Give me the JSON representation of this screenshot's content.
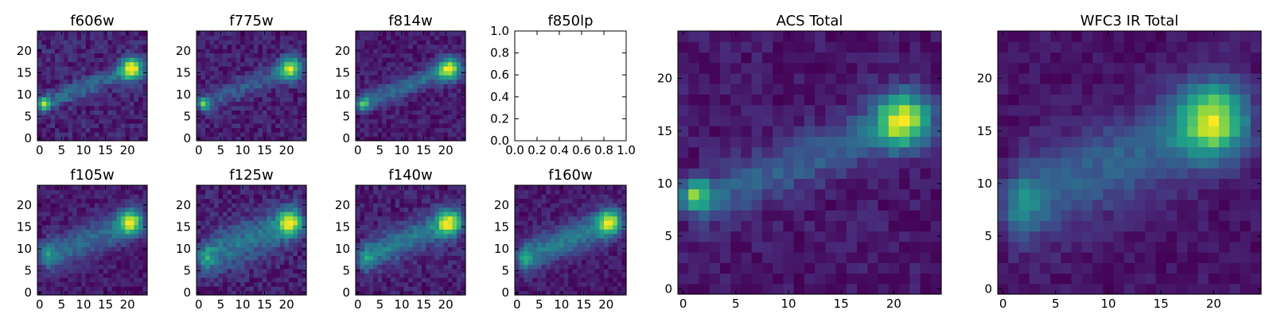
{
  "chart_data": [
    {
      "type": "heatmap",
      "title": "f606w",
      "grid": [
        25,
        25
      ],
      "xlim": [
        0,
        24
      ],
      "ylim": [
        0,
        24
      ],
      "xticks": [
        0,
        5,
        10,
        15,
        20
      ],
      "yticks": [
        0,
        5,
        10,
        15,
        20
      ],
      "features": {
        "base": 0.22,
        "knot": [
          21,
          16,
          1.0,
          1.8
        ],
        "clump": [
          1,
          8,
          0.85,
          1.0
        ],
        "arc": 0.3,
        "arcWidth": 1.6,
        "noise": 0.12,
        "seed": 11
      }
    },
    {
      "type": "heatmap",
      "title": "f775w",
      "grid": [
        25,
        25
      ],
      "xlim": [
        0,
        24
      ],
      "ylim": [
        0,
        24
      ],
      "xticks": [
        0,
        5,
        10,
        15,
        20
      ],
      "yticks": [
        0,
        5,
        10,
        15,
        20
      ],
      "features": {
        "base": 0.3,
        "knot": [
          21,
          16,
          1.0,
          1.8
        ],
        "clump": [
          1,
          8,
          0.8,
          1.0
        ],
        "arc": 0.28,
        "arcWidth": 1.8,
        "noise": 0.12,
        "seed": 23
      }
    },
    {
      "type": "heatmap",
      "title": "f814w",
      "grid": [
        25,
        25
      ],
      "xlim": [
        0,
        24
      ],
      "ylim": [
        0,
        24
      ],
      "xticks": [
        0,
        5,
        10,
        15,
        20
      ],
      "yticks": [
        0,
        5,
        10,
        15,
        20
      ],
      "features": {
        "base": 0.2,
        "knot": [
          21,
          16,
          1.0,
          1.9
        ],
        "clump": [
          1,
          8,
          0.8,
          1.0
        ],
        "arc": 0.42,
        "arcWidth": 1.5,
        "noise": 0.11,
        "seed": 37
      }
    },
    {
      "type": "empty",
      "title": "f850lp",
      "xlim": [
        0.0,
        1.0
      ],
      "ylim": [
        0.0,
        1.0
      ],
      "xticks": [
        "0.0",
        "0.2",
        "0.4",
        "0.6",
        "0.8",
        "1.0"
      ],
      "yticks": [
        "0.0",
        "0.2",
        "0.4",
        "0.6",
        "0.8",
        "1.0"
      ]
    },
    {
      "type": "heatmap",
      "title": "ACS Total",
      "grid": [
        25,
        25
      ],
      "xlim": [
        0,
        24
      ],
      "ylim": [
        0,
        24
      ],
      "xticks": [
        0,
        5,
        10,
        15,
        20
      ],
      "yticks": [
        0,
        5,
        10,
        15,
        20
      ],
      "features": {
        "base": 0.25,
        "knot": [
          21,
          16,
          1.0,
          1.9
        ],
        "clump": [
          1,
          9,
          0.9,
          1.0
        ],
        "arc": 0.32,
        "arcWidth": 1.8,
        "noise": 0.09,
        "seed": 53
      }
    },
    {
      "type": "heatmap",
      "title": "WFC3 IR Total",
      "grid": [
        25,
        25
      ],
      "xlim": [
        0,
        24
      ],
      "ylim": [
        0,
        24
      ],
      "xticks": [
        0,
        5,
        10,
        15,
        20
      ],
      "yticks": [
        0,
        5,
        10,
        15,
        20
      ],
      "features": {
        "base": 0.35,
        "knot": [
          20,
          16,
          1.0,
          2.4
        ],
        "clump": [
          1,
          8,
          0.35,
          2.0
        ],
        "arc": 0.4,
        "arcWidth": 3.0,
        "noise": 0.08,
        "seed": 71
      }
    },
    {
      "type": "heatmap",
      "title": "f105w",
      "grid": [
        25,
        25
      ],
      "xlim": [
        0,
        24
      ],
      "ylim": [
        0,
        24
      ],
      "xticks": [
        0,
        5,
        10,
        15,
        20
      ],
      "yticks": [
        0,
        5,
        10,
        15,
        20
      ],
      "features": {
        "base": 0.32,
        "knot": [
          21,
          16,
          0.95,
          2.0
        ],
        "clump": [
          1,
          9,
          0.35,
          1.8
        ],
        "arc": 0.38,
        "arcWidth": 2.8,
        "noise": 0.1,
        "seed": 83
      }
    },
    {
      "type": "heatmap",
      "title": "f125w",
      "grid": [
        25,
        25
      ],
      "xlim": [
        0,
        24
      ],
      "ylim": [
        0,
        24
      ],
      "xticks": [
        0,
        5,
        10,
        15,
        20
      ],
      "yticks": [
        0,
        5,
        10,
        15,
        20
      ],
      "features": {
        "base": 0.42,
        "knot": [
          21,
          16,
          0.95,
          2.0
        ],
        "clump": [
          1,
          8,
          0.4,
          1.8
        ],
        "arc": 0.42,
        "arcWidth": 3.2,
        "noise": 0.13,
        "seed": 97
      }
    },
    {
      "type": "heatmap",
      "title": "f140w",
      "grid": [
        25,
        25
      ],
      "xlim": [
        0,
        24
      ],
      "ylim": [
        0,
        24
      ],
      "xticks": [
        0,
        5,
        10,
        15,
        20
      ],
      "yticks": [
        0,
        5,
        10,
        15,
        20
      ],
      "features": {
        "base": 0.38,
        "knot": [
          21,
          16,
          0.95,
          2.0
        ],
        "clump": [
          1,
          8,
          0.35,
          1.6
        ],
        "arc": 0.45,
        "arcWidth": 2.6,
        "noise": 0.12,
        "seed": 109
      }
    },
    {
      "type": "heatmap",
      "title": "f160w",
      "grid": [
        25,
        25
      ],
      "xlim": [
        0,
        24
      ],
      "ylim": [
        0,
        24
      ],
      "xticks": [
        0,
        5,
        10,
        15,
        20
      ],
      "yticks": [
        0,
        5,
        10,
        15,
        20
      ],
      "features": {
        "base": 0.4,
        "knot": [
          21,
          16,
          0.95,
          2.0
        ],
        "clump": [
          1,
          8,
          0.4,
          1.6
        ],
        "arc": 0.48,
        "arcWidth": 2.6,
        "noise": 0.1,
        "seed": 127
      }
    }
  ]
}
